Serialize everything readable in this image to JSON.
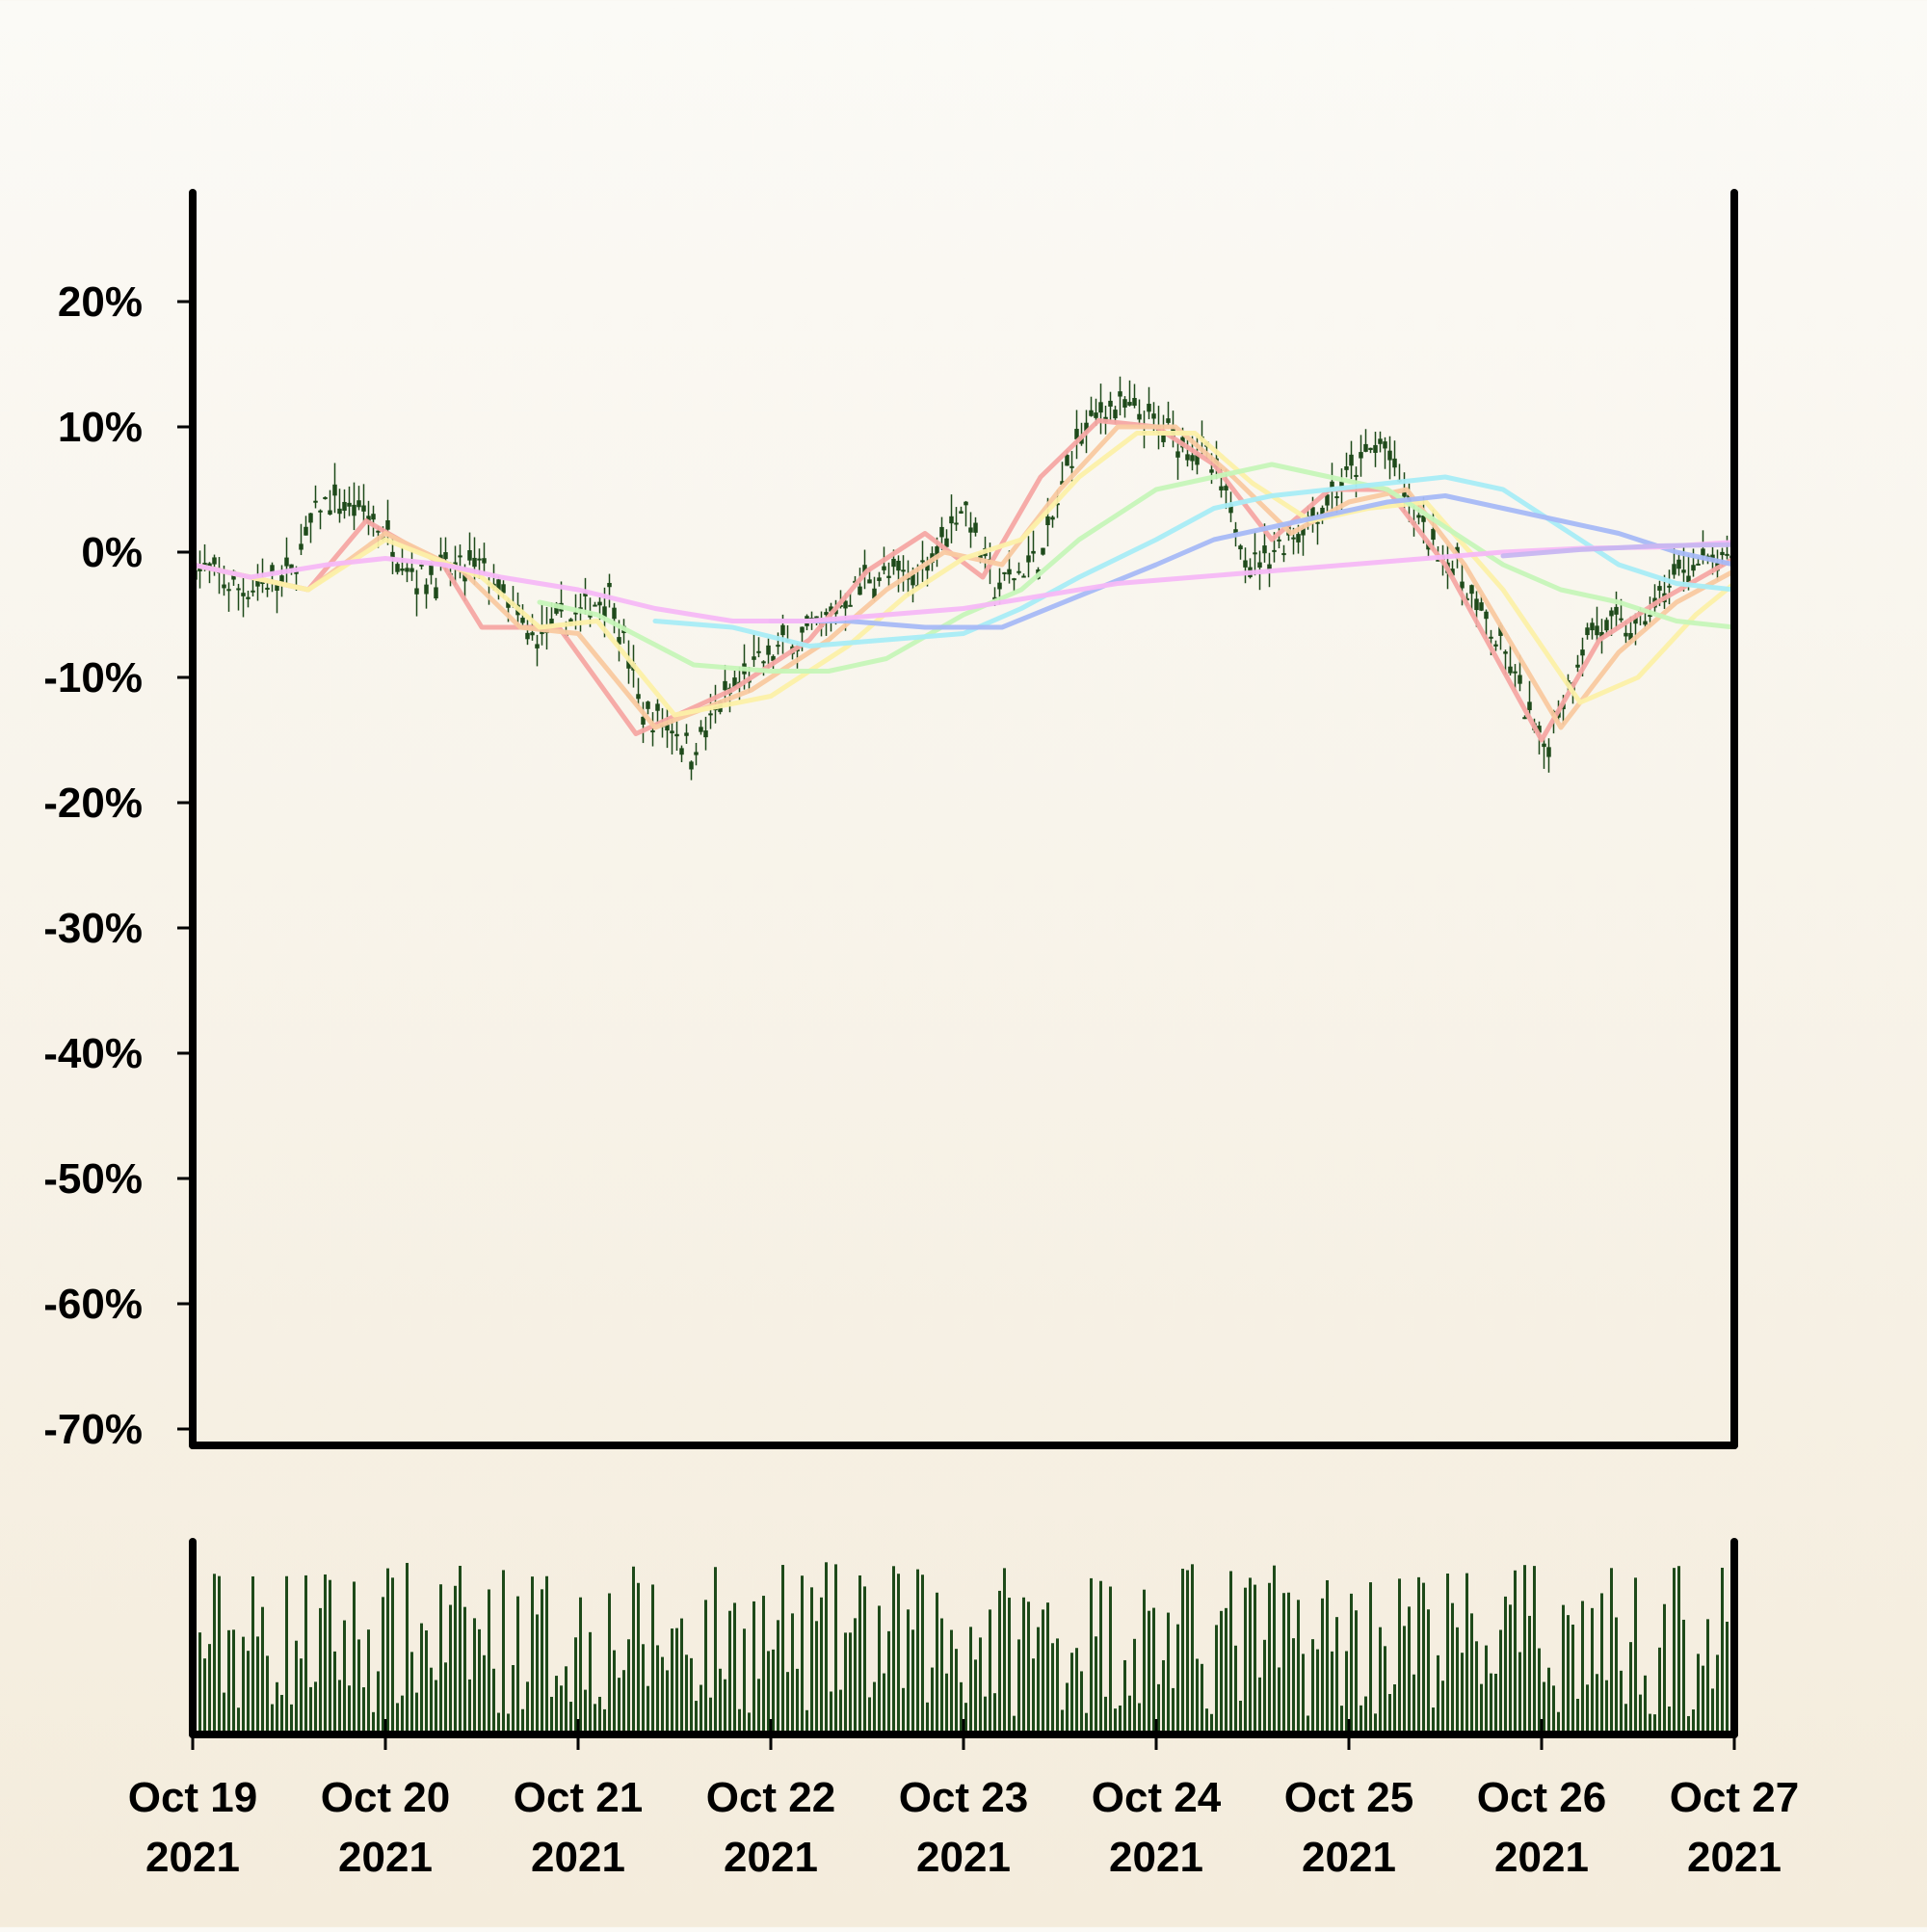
{
  "chart_data": {
    "type": "candlestick",
    "title": "",
    "xlabel": "",
    "ylabel": "",
    "ylim": [
      -70,
      20
    ],
    "y_tick_labels": [
      "20%",
      "10%",
      "0%",
      "-10%",
      "-20%",
      "-30%",
      "-40%",
      "-50%",
      "-60%",
      "-70%"
    ],
    "y_tick_values": [
      20,
      10,
      0,
      -10,
      -20,
      -30,
      -40,
      -50,
      -60,
      -70
    ],
    "x_range": [
      "2021-10-19",
      "2021-10-27"
    ],
    "x_tick_labels": [
      {
        "line1": "Oct 19",
        "line2": "2021"
      },
      {
        "line1": "Oct 20",
        "line2": "2021"
      },
      {
        "line1": "Oct 21",
        "line2": "2021"
      },
      {
        "line1": "Oct 22",
        "line2": "2021"
      },
      {
        "line1": "Oct 23",
        "line2": "2021"
      },
      {
        "line1": "Oct 24",
        "line2": "2021"
      },
      {
        "line1": "Oct 25",
        "line2": "2021"
      },
      {
        "line1": "Oct 26",
        "line2": "2021"
      },
      {
        "line1": "Oct 27",
        "line2": "2021"
      }
    ],
    "x_tick_values": [
      "2021-10-19",
      "2021-10-20",
      "2021-10-21",
      "2021-10-22",
      "2021-10-23",
      "2021-10-24",
      "2021-10-25",
      "2021-10-26",
      "2021-10-27"
    ],
    "grid": false,
    "legend": "none",
    "candle_color": "#1e4a1a",
    "volume_color": "#1e4a1a",
    "price_path": [
      [
        "2021-10-19T00:00",
        -1
      ],
      [
        "2021-10-19T06:00",
        -3
      ],
      [
        "2021-10-19T12:00",
        -2
      ],
      [
        "2021-10-19T16:00",
        4
      ],
      [
        "2021-10-19T22:00",
        3
      ],
      [
        "2021-10-20T04:00",
        -2
      ],
      [
        "2021-10-20T12:00",
        -1
      ],
      [
        "2021-10-20T18:00",
        -7
      ],
      [
        "2021-10-21T00:00",
        -5
      ],
      [
        "2021-10-21T04:00",
        -3
      ],
      [
        "2021-10-21T12:00",
        -14
      ],
      [
        "2021-10-21T08:00",
        -13
      ],
      [
        "2021-10-21T14:00",
        -16
      ],
      [
        "2021-10-21T18:00",
        -12
      ],
      [
        "2021-10-22T00:00",
        -8
      ],
      [
        "2021-10-22T06:00",
        -6
      ],
      [
        "2021-10-22T12:00",
        -2
      ],
      [
        "2021-10-22T18:00",
        -2
      ],
      [
        "2021-10-23T00:00",
        4
      ],
      [
        "2021-10-23T04:00",
        -3
      ],
      [
        "2021-10-23T10:00",
        0
      ],
      [
        "2021-10-23T14:00",
        9
      ],
      [
        "2021-10-23T18:00",
        12
      ],
      [
        "2021-10-24T00:00",
        10
      ],
      [
        "2021-10-24T06:00",
        8
      ],
      [
        "2021-10-24T12:00",
        -1
      ],
      [
        "2021-10-24T18:00",
        2
      ],
      [
        "2021-10-25T00:00",
        6
      ],
      [
        "2021-10-25T04:00",
        9
      ],
      [
        "2021-10-25T08:00",
        3
      ],
      [
        "2021-10-25T14:00",
        -2
      ],
      [
        "2021-10-25T20:00",
        -9
      ],
      [
        "2021-10-26T00:00",
        -16
      ],
      [
        "2021-10-26T06:00",
        -6
      ],
      [
        "2021-10-26T12:00",
        -6
      ],
      [
        "2021-10-26T18:00",
        -1
      ],
      [
        "2021-10-27T00:00",
        -1
      ]
    ],
    "moving_averages": [
      {
        "color": "#f5a7a3",
        "values": [
          [
            0,
            -1
          ],
          [
            0.6,
            -3
          ],
          [
            0.9,
            2.5
          ],
          [
            1.3,
            -1
          ],
          [
            1.5,
            -6
          ],
          [
            1.9,
            -6
          ],
          [
            2.3,
            -14.5
          ],
          [
            2.8,
            -11
          ],
          [
            3.2,
            -7
          ],
          [
            3.5,
            -1.5
          ],
          [
            3.8,
            1.5
          ],
          [
            4.1,
            -2
          ],
          [
            4.4,
            6
          ],
          [
            4.7,
            10.5
          ],
          [
            5.0,
            10
          ],
          [
            5.3,
            7
          ],
          [
            5.6,
            1
          ],
          [
            5.9,
            5
          ],
          [
            6.2,
            5
          ],
          [
            6.5,
            -1
          ],
          [
            7.0,
            -15
          ],
          [
            7.3,
            -7
          ],
          [
            7.6,
            -4
          ],
          [
            8.0,
            -0.5
          ]
        ]
      },
      {
        "color": "#f9c9a0",
        "values": [
          [
            0,
            -1
          ],
          [
            0.6,
            -3
          ],
          [
            1.0,
            1.5
          ],
          [
            1.4,
            -1.5
          ],
          [
            1.7,
            -6
          ],
          [
            2.0,
            -6.5
          ],
          [
            2.4,
            -14
          ],
          [
            2.9,
            -11
          ],
          [
            3.3,
            -7
          ],
          [
            3.6,
            -3
          ],
          [
            3.9,
            0
          ],
          [
            4.2,
            -1
          ],
          [
            4.5,
            5
          ],
          [
            4.8,
            10
          ],
          [
            5.1,
            10
          ],
          [
            5.4,
            6
          ],
          [
            5.7,
            1.5
          ],
          [
            6.0,
            4
          ],
          [
            6.3,
            5
          ],
          [
            6.6,
            -1
          ],
          [
            7.1,
            -14
          ],
          [
            7.4,
            -8
          ],
          [
            7.7,
            -4
          ],
          [
            8.0,
            -1.5
          ]
        ]
      },
      {
        "color": "#fcf0a8",
        "values": [
          [
            0,
            -1
          ],
          [
            0.6,
            -3
          ],
          [
            1.0,
            1
          ],
          [
            1.5,
            -2
          ],
          [
            1.8,
            -6
          ],
          [
            2.1,
            -5.5
          ],
          [
            2.5,
            -13
          ],
          [
            3.0,
            -11.5
          ],
          [
            3.4,
            -7.5
          ],
          [
            3.7,
            -3.5
          ],
          [
            4.0,
            -0.5
          ],
          [
            4.3,
            1
          ],
          [
            4.6,
            6
          ],
          [
            4.9,
            9.5
          ],
          [
            5.2,
            9.5
          ],
          [
            5.5,
            5.5
          ],
          [
            5.8,
            2.5
          ],
          [
            6.1,
            3.5
          ],
          [
            6.4,
            4
          ],
          [
            6.8,
            -3
          ],
          [
            7.2,
            -12
          ],
          [
            7.5,
            -10
          ],
          [
            7.8,
            -5
          ],
          [
            8.0,
            -2.5
          ]
        ]
      },
      {
        "color": "#c6f5b8",
        "values": [
          [
            1.8,
            -4
          ],
          [
            2.1,
            -5
          ],
          [
            2.6,
            -9
          ],
          [
            3.0,
            -9.5
          ],
          [
            3.3,
            -9.5
          ],
          [
            3.6,
            -8.5
          ],
          [
            4.0,
            -5
          ],
          [
            4.3,
            -3
          ],
          [
            4.6,
            1
          ],
          [
            5.0,
            5
          ],
          [
            5.3,
            6
          ],
          [
            5.6,
            7
          ],
          [
            5.9,
            6
          ],
          [
            6.2,
            5
          ],
          [
            6.5,
            2
          ],
          [
            6.8,
            -1
          ],
          [
            7.1,
            -3
          ],
          [
            7.4,
            -4
          ],
          [
            7.7,
            -5.5
          ],
          [
            8.0,
            -6
          ]
        ]
      },
      {
        "color": "#a8ecf5",
        "values": [
          [
            2.4,
            -5.5
          ],
          [
            2.8,
            -6
          ],
          [
            3.2,
            -7.5
          ],
          [
            3.6,
            -7
          ],
          [
            4.0,
            -6.5
          ],
          [
            4.3,
            -4.5
          ],
          [
            4.6,
            -2
          ],
          [
            5.0,
            1
          ],
          [
            5.3,
            3.5
          ],
          [
            5.6,
            4.5
          ],
          [
            5.9,
            5
          ],
          [
            6.2,
            5.5
          ],
          [
            6.5,
            6
          ],
          [
            6.8,
            5
          ],
          [
            7.1,
            2
          ],
          [
            7.4,
            -1
          ],
          [
            7.7,
            -2.5
          ],
          [
            8.0,
            -3
          ]
        ]
      },
      {
        "color": "#a7b9f5",
        "values": [
          [
            3.0,
            -5.5
          ],
          [
            3.4,
            -5.5
          ],
          [
            3.8,
            -6
          ],
          [
            4.2,
            -6
          ],
          [
            4.6,
            -3.5
          ],
          [
            5.0,
            -1
          ],
          [
            5.3,
            1
          ],
          [
            5.6,
            2
          ],
          [
            5.9,
            3
          ],
          [
            6.2,
            4
          ],
          [
            6.5,
            4.5
          ],
          [
            6.8,
            3.5
          ],
          [
            7.1,
            2.5
          ],
          [
            7.4,
            1.5
          ],
          [
            7.7,
            0
          ],
          [
            8.0,
            -1
          ]
        ]
      },
      {
        "color": "#f5b8f5",
        "values": [
          [
            0,
            -1
          ],
          [
            0.3,
            -2
          ],
          [
            0.7,
            -1
          ],
          [
            1.0,
            -0.5
          ],
          [
            1.3,
            -1
          ],
          [
            1.6,
            -2
          ],
          [
            2.0,
            -3
          ],
          [
            2.4,
            -4.5
          ],
          [
            2.8,
            -5.5
          ],
          [
            3.2,
            -5.5
          ],
          [
            3.6,
            -5
          ],
          [
            4.0,
            -4.5
          ],
          [
            4.4,
            -3.5
          ],
          [
            4.8,
            -2.5
          ],
          [
            5.2,
            -2
          ],
          [
            5.6,
            -1.5
          ],
          [
            6.0,
            -1
          ],
          [
            6.4,
            -0.5
          ],
          [
            6.8,
            0
          ],
          [
            7.2,
            0.3
          ],
          [
            7.6,
            0.4
          ],
          [
            8.0,
            0.8
          ]
        ]
      },
      {
        "color": "#c7b6f0",
        "values": [
          [
            6.8,
            -0.3
          ],
          [
            7.2,
            0.2
          ],
          [
            7.6,
            0.5
          ],
          [
            8.0,
            0.6
          ]
        ]
      }
    ],
    "volume_panel": {
      "y_axis_labels": []
    }
  }
}
